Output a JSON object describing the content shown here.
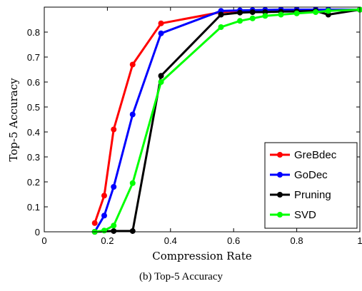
{
  "caption": "(b) Top-5 Accuracy",
  "chart_data": {
    "type": "line",
    "title": "",
    "xlabel": "Compression Rate",
    "ylabel": "Top-5 Accuracy",
    "xlim": [
      0,
      1
    ],
    "ylim": [
      0,
      0.9
    ],
    "xticks": [
      0,
      0.2,
      0.4,
      0.6,
      0.8,
      1
    ],
    "xtick_labels": [
      "0",
      "0.2",
      "0.4",
      "0.6",
      "0.8",
      "1"
    ],
    "yticks": [
      0,
      0.1,
      0.2,
      0.3,
      0.4,
      0.5,
      0.6,
      0.7,
      0.8
    ],
    "ytick_labels": [
      "0",
      "0.1",
      "0.2",
      "0.3",
      "0.4",
      "0.5",
      "0.6",
      "0.7",
      "0.8"
    ],
    "grid": false,
    "legend_position": "bottom-right",
    "series": [
      {
        "name": "GreBdec",
        "color": "#ff0000",
        "x": [
          0.16,
          0.19,
          0.22,
          0.28,
          0.37,
          0.56,
          0.62,
          0.66,
          0.7,
          0.75,
          0.8,
          0.86,
          0.9,
          1.0
        ],
        "y": [
          0.035,
          0.145,
          0.41,
          0.67,
          0.835,
          0.88,
          0.885,
          0.887,
          0.888,
          0.889,
          0.89,
          0.89,
          0.89,
          0.89
        ]
      },
      {
        "name": "GoDec",
        "color": "#0000ff",
        "x": [
          0.16,
          0.19,
          0.22,
          0.28,
          0.37,
          0.56,
          0.62,
          0.66,
          0.7,
          0.75,
          0.8,
          0.86,
          0.9,
          1.0
        ],
        "y": [
          0.0,
          0.065,
          0.18,
          0.47,
          0.795,
          0.885,
          0.887,
          0.888,
          0.889,
          0.89,
          0.89,
          0.89,
          0.89,
          0.89
        ]
      },
      {
        "name": "Pruning",
        "color": "#000000",
        "x": [
          0.16,
          0.22,
          0.28,
          0.37,
          0.56,
          0.62,
          0.66,
          0.7,
          0.75,
          0.8,
          0.86,
          0.9,
          1.0
        ],
        "y": [
          0.0,
          0.003,
          0.003,
          0.625,
          0.87,
          0.878,
          0.88,
          0.88,
          0.882,
          0.883,
          0.885,
          0.87,
          0.89
        ]
      },
      {
        "name": "SVD",
        "color": "#00ff00",
        "x": [
          0.16,
          0.19,
          0.22,
          0.28,
          0.37,
          0.56,
          0.62,
          0.66,
          0.7,
          0.75,
          0.8,
          0.86,
          0.9,
          1.0
        ],
        "y": [
          0.0,
          0.005,
          0.025,
          0.195,
          0.6,
          0.82,
          0.845,
          0.855,
          0.865,
          0.87,
          0.875,
          0.88,
          0.885,
          0.89
        ]
      }
    ]
  }
}
